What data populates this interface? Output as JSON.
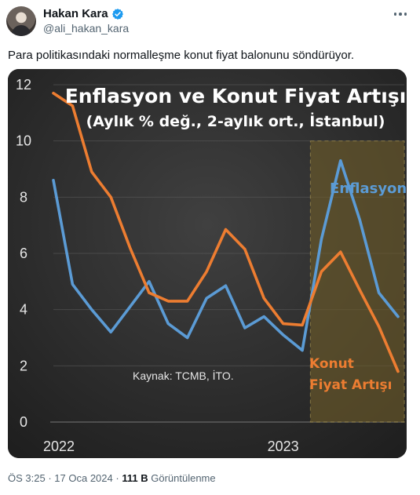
{
  "author": {
    "display_name": "Hakan Kara",
    "handle": "@ali_hakan_kara"
  },
  "tweet": {
    "text": "Para politikasındaki normalleşme konut fiyat balonunu söndürüyor."
  },
  "meta": {
    "time": "ÖS 3:25",
    "separator": "·",
    "date": "17 Oca 2024",
    "views_count": "111 B",
    "views_label": "Görüntülenme"
  },
  "colors": {
    "verified": "#1d9bf0",
    "inflation_line": "#5b9bd5",
    "housing_line": "#ed7d31",
    "highlight_fill": "#6b5a2a"
  },
  "chart_data": {
    "type": "line",
    "title": "Enflasyon ve Konut Fiyat Artışı",
    "subtitle": "(Aylık % değ., 2-aylık ort., İstanbul)",
    "source_note": "Kaynak: TCMB, İTO.",
    "x_tick_labels": [
      "2022",
      "2023"
    ],
    "ylim": [
      0,
      12
    ],
    "y_ticks": [
      0,
      2,
      4,
      6,
      8,
      10,
      12
    ],
    "grid": true,
    "highlight_region_start_index": 14,
    "series": [
      {
        "name": "Enflasyon",
        "color": "#5b9bd5",
        "values": [
          8.6,
          4.9,
          4.0,
          3.2,
          4.1,
          5.0,
          3.5,
          3.0,
          4.4,
          4.85,
          3.35,
          3.75,
          3.1,
          2.55,
          6.5,
          9.3,
          7.2,
          4.6,
          3.75
        ]
      },
      {
        "name": "Konut Fiyat Artışı",
        "label_lines": [
          "Konut",
          "Fiyat Artışı"
        ],
        "color": "#ed7d31",
        "values": [
          11.7,
          11.25,
          8.9,
          8.0,
          6.2,
          4.6,
          4.3,
          4.3,
          5.35,
          6.85,
          6.15,
          4.4,
          3.5,
          3.45,
          5.35,
          6.05,
          4.7,
          3.4,
          1.8
        ]
      }
    ]
  }
}
